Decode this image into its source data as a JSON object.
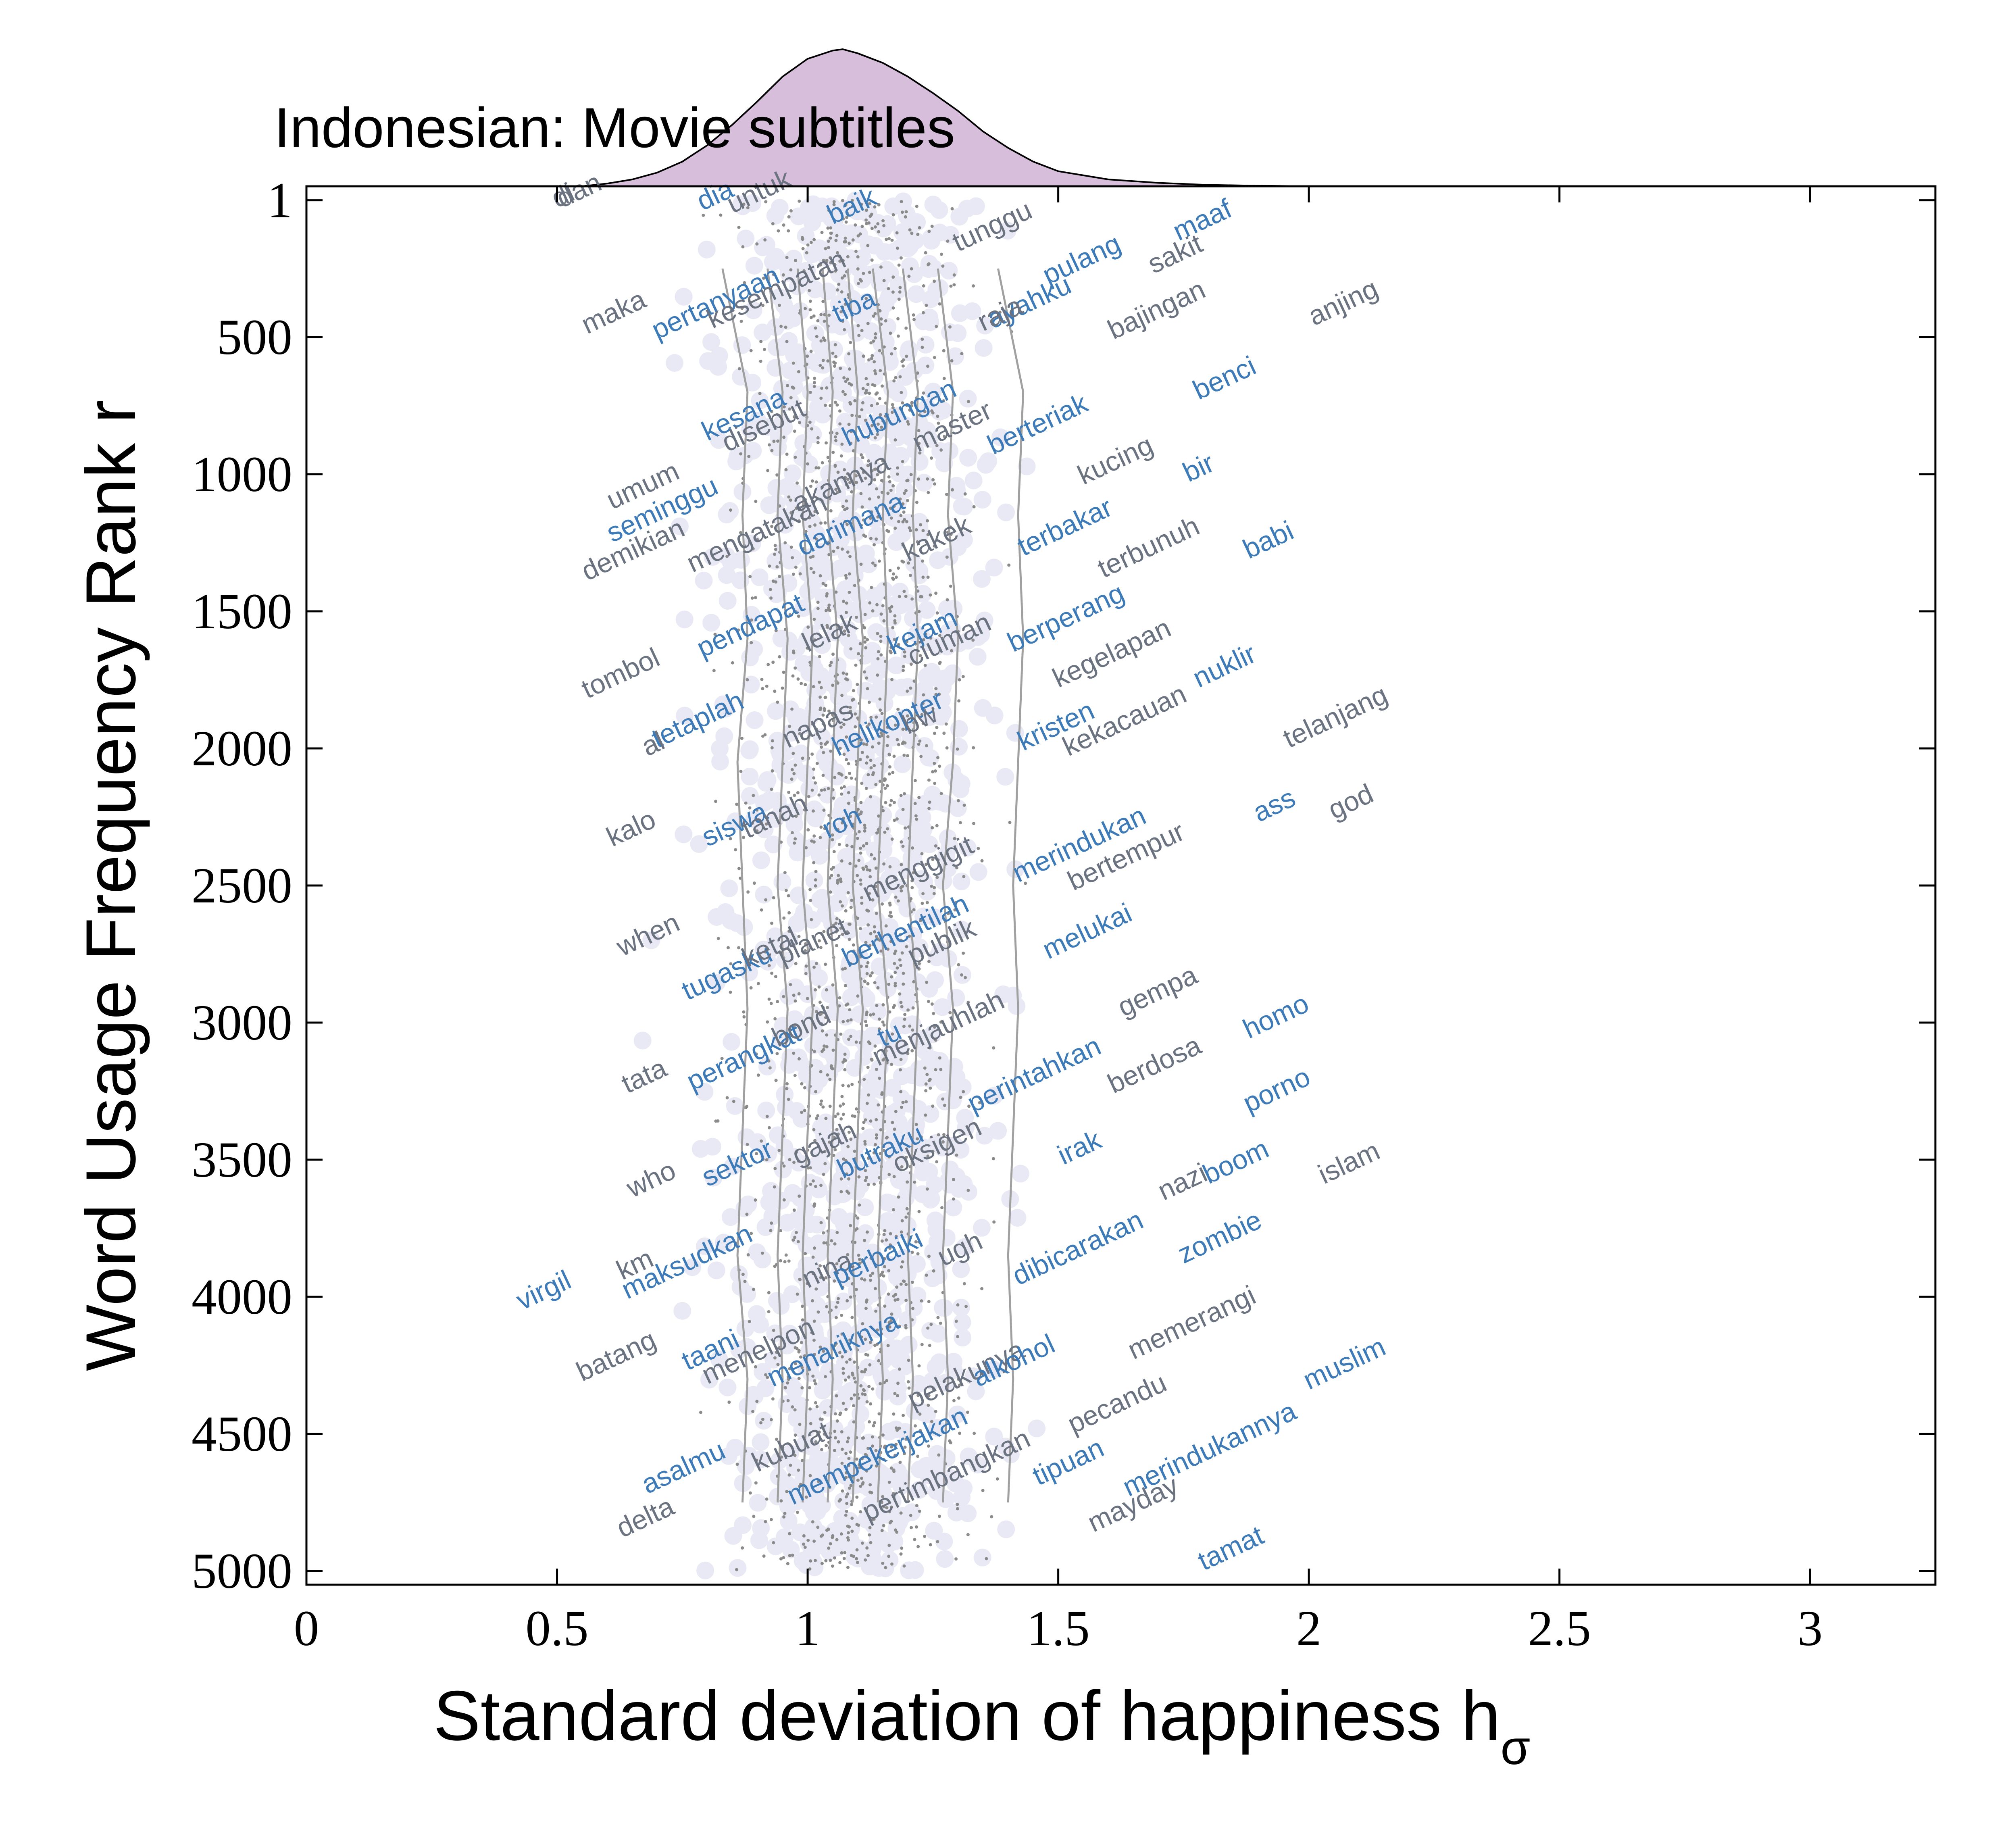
{
  "chart_data": {
    "type": "scatter",
    "title": "Indonesian: Movie subtitles",
    "xlabel": "Standard deviation of happiness h",
    "xlabel_subscript": "σ",
    "ylabel": "Word Usage Frequency Rank r",
    "xlim": [
      0,
      3.25
    ],
    "ylim": [
      5050,
      -50
    ],
    "y_inverted": true,
    "x_ticks": [
      0,
      0.5,
      1,
      1.5,
      2,
      2.5,
      3
    ],
    "x_tick_labels": [
      "0",
      "0.5",
      "1",
      "1.5",
      "2",
      "2.5",
      "3"
    ],
    "y_ticks": [
      1,
      500,
      1000,
      1500,
      2000,
      2500,
      3000,
      3500,
      4000,
      4500,
      5000
    ],
    "y_tick_labels": [
      "1",
      "500",
      "1000",
      "1500",
      "2000",
      "2500",
      "3000",
      "3500",
      "4000",
      "4500",
      "5000"
    ],
    "grid": false,
    "colors": {
      "word_positive": "#3d7ab8",
      "word_neutral": "#6b7280",
      "dot": "#8a8a8a",
      "halo": "#e9e9f5",
      "trend": "#a0a0a0",
      "density_fill": "#d7bedb",
      "density_stroke": "#000000"
    },
    "marginal_density": {
      "x": [
        0.55,
        0.6,
        0.65,
        0.7,
        0.75,
        0.8,
        0.85,
        0.9,
        0.95,
        1.0,
        1.05,
        1.07,
        1.1,
        1.15,
        1.2,
        1.25,
        1.3,
        1.35,
        1.4,
        1.45,
        1.5,
        1.6,
        1.7,
        1.8,
        1.9,
        2.0
      ],
      "y": [
        0.0,
        0.02,
        0.05,
        0.1,
        0.18,
        0.3,
        0.45,
        0.62,
        0.8,
        0.93,
        0.99,
        1.0,
        0.97,
        0.9,
        0.8,
        0.68,
        0.55,
        0.4,
        0.28,
        0.18,
        0.11,
        0.05,
        0.025,
        0.01,
        0.004,
        0.0
      ]
    },
    "trend_lines": [
      {
        "x": [
          0.83,
          0.88,
          0.87,
          0.88,
          0.86,
          0.87,
          0.88,
          0.87,
          0.86,
          0.88,
          0.87
        ]
      },
      {
        "x": [
          0.92,
          0.95,
          0.94,
          0.96,
          0.95,
          0.94,
          0.96,
          0.95,
          0.94,
          0.95,
          0.94
        ]
      },
      {
        "x": [
          0.98,
          1.0,
          0.99,
          1.01,
          1.0,
          0.99,
          1.01,
          1.0,
          0.99,
          1.0,
          0.99
        ]
      },
      {
        "x": [
          1.03,
          1.05,
          1.04,
          1.06,
          1.05,
          1.04,
          1.06,
          1.05,
          1.04,
          1.05,
          1.04
        ]
      },
      {
        "x": [
          1.08,
          1.1,
          1.09,
          1.11,
          1.1,
          1.09,
          1.11,
          1.1,
          1.09,
          1.1,
          1.09
        ]
      },
      {
        "x": [
          1.13,
          1.16,
          1.15,
          1.16,
          1.15,
          1.14,
          1.16,
          1.15,
          1.14,
          1.15,
          1.14
        ]
      },
      {
        "x": [
          1.19,
          1.22,
          1.21,
          1.22,
          1.21,
          1.2,
          1.22,
          1.21,
          1.2,
          1.21,
          1.2
        ]
      },
      {
        "x": [
          1.26,
          1.29,
          1.28,
          1.3,
          1.29,
          1.27,
          1.29,
          1.28,
          1.27,
          1.28,
          1.27
        ]
      },
      {
        "x": [
          1.38,
          1.43,
          1.42,
          1.43,
          1.42,
          1.41,
          1.42,
          1.41,
          1.4,
          1.41,
          1.4
        ]
      }
    ],
    "trend_ranks": [
      250,
      700,
      1150,
      1600,
      2050,
      2500,
      2950,
      3400,
      3850,
      4300,
      4750
    ],
    "words": [
      {
        "t": "dan",
        "x": 0.51,
        "r": 30,
        "c": "n"
      },
      {
        "t": "di",
        "x": 0.5,
        "r": 30,
        "c": "n"
      },
      {
        "t": "dia",
        "x": 0.79,
        "r": 40,
        "c": "p"
      },
      {
        "t": "untuk",
        "x": 0.85,
        "r": 50,
        "c": "n"
      },
      {
        "t": "baik",
        "x": 1.05,
        "r": 90,
        "c": "p"
      },
      {
        "t": "tunggu",
        "x": 1.3,
        "r": 190,
        "c": "n"
      },
      {
        "t": "maaf",
        "x": 1.74,
        "r": 150,
        "c": "p"
      },
      {
        "t": "sakit",
        "x": 1.69,
        "r": 270,
        "c": "n"
      },
      {
        "t": "pulang",
        "x": 1.48,
        "r": 310,
        "c": "p"
      },
      {
        "t": "ayahku",
        "x": 1.37,
        "r": 470,
        "c": "p"
      },
      {
        "t": "raja",
        "x": 1.35,
        "r": 480,
        "c": "n"
      },
      {
        "t": "bajingan",
        "x": 1.61,
        "r": 510,
        "c": "n"
      },
      {
        "t": "anjing",
        "x": 2.01,
        "r": 460,
        "c": "n"
      },
      {
        "t": "maka",
        "x": 0.56,
        "r": 490,
        "c": "n"
      },
      {
        "t": "pertanyaan",
        "x": 0.7,
        "r": 510,
        "c": "p"
      },
      {
        "t": "kesempatan",
        "x": 0.81,
        "r": 470,
        "c": "n"
      },
      {
        "t": "tiba",
        "x": 1.06,
        "r": 450,
        "c": "p"
      },
      {
        "t": "benci",
        "x": 1.78,
        "r": 730,
        "c": "p"
      },
      {
        "t": "kesana",
        "x": 0.8,
        "r": 880,
        "c": "p"
      },
      {
        "t": "disebut",
        "x": 0.84,
        "r": 920,
        "c": "n"
      },
      {
        "t": "hubungan",
        "x": 1.08,
        "r": 900,
        "c": "p"
      },
      {
        "t": "master",
        "x": 1.22,
        "r": 920,
        "c": "n"
      },
      {
        "t": "berteriak",
        "x": 1.37,
        "r": 930,
        "c": "p"
      },
      {
        "t": "kucing",
        "x": 1.55,
        "r": 1040,
        "c": "n"
      },
      {
        "t": "bir",
        "x": 1.76,
        "r": 1030,
        "c": "p"
      },
      {
        "t": "umum",
        "x": 0.61,
        "r": 1130,
        "c": "n"
      },
      {
        "t": "seminggu",
        "x": 0.61,
        "r": 1250,
        "c": "p"
      },
      {
        "t": "akannya",
        "x": 0.98,
        "r": 1140,
        "c": "n"
      },
      {
        "t": "darimana",
        "x": 0.99,
        "r": 1300,
        "c": "p"
      },
      {
        "t": "mengatakan",
        "x": 0.77,
        "r": 1360,
        "c": "n"
      },
      {
        "t": "demikian",
        "x": 0.56,
        "r": 1390,
        "c": "n"
      },
      {
        "t": "kakek",
        "x": 1.2,
        "r": 1320,
        "c": "n"
      },
      {
        "t": "terbakar",
        "x": 1.43,
        "r": 1300,
        "c": "p"
      },
      {
        "t": "terbunuh",
        "x": 1.59,
        "r": 1380,
        "c": "n"
      },
      {
        "t": "babi",
        "x": 1.88,
        "r": 1310,
        "c": "p"
      },
      {
        "t": "pendapat",
        "x": 0.79,
        "r": 1670,
        "c": "p"
      },
      {
        "t": "lelak",
        "x": 1.0,
        "r": 1650,
        "c": "n"
      },
      {
        "t": "kejam",
        "x": 1.17,
        "r": 1660,
        "c": "p"
      },
      {
        "t": "ciuman",
        "x": 1.21,
        "r": 1700,
        "c": "n"
      },
      {
        "t": "berperang",
        "x": 1.41,
        "r": 1650,
        "c": "p"
      },
      {
        "t": "kegelapan",
        "x": 1.5,
        "r": 1780,
        "c": "n"
      },
      {
        "t": "nuklir",
        "x": 1.78,
        "r": 1780,
        "c": "p"
      },
      {
        "t": "telanjang",
        "x": 1.96,
        "r": 2000,
        "c": "n"
      },
      {
        "t": "tombol",
        "x": 0.56,
        "r": 1820,
        "c": "n"
      },
      {
        "t": "tetaplah",
        "x": 0.7,
        "r": 2000,
        "c": "p"
      },
      {
        "t": "al",
        "x": 0.68,
        "r": 2030,
        "c": "n"
      },
      {
        "t": "napas",
        "x": 0.96,
        "r": 2000,
        "c": "n"
      },
      {
        "t": "helikopter",
        "x": 1.06,
        "r": 2030,
        "c": "p"
      },
      {
        "t": "bw",
        "x": 1.2,
        "r": 1950,
        "c": "n"
      },
      {
        "t": "kristen",
        "x": 1.43,
        "r": 2010,
        "c": "p"
      },
      {
        "t": "kekacauan",
        "x": 1.52,
        "r": 2030,
        "c": "n"
      },
      {
        "t": "kalo",
        "x": 0.61,
        "r": 2360,
        "c": "n"
      },
      {
        "t": "siswa",
        "x": 0.8,
        "r": 2360,
        "c": "p"
      },
      {
        "t": "tanah",
        "x": 0.88,
        "r": 2330,
        "c": "n"
      },
      {
        "t": "roh",
        "x": 1.04,
        "r": 2330,
        "c": "p"
      },
      {
        "t": "merindukan",
        "x": 1.42,
        "r": 2490,
        "c": "p"
      },
      {
        "t": "bertempur",
        "x": 1.53,
        "r": 2520,
        "c": "n"
      },
      {
        "t": "ass",
        "x": 1.9,
        "r": 2270,
        "c": "p"
      },
      {
        "t": "god",
        "x": 2.05,
        "r": 2260,
        "c": "n"
      },
      {
        "t": "menggigit",
        "x": 1.12,
        "r": 2560,
        "c": "n"
      },
      {
        "t": "when",
        "x": 0.63,
        "r": 2760,
        "c": "n"
      },
      {
        "t": "tugasku",
        "x": 0.76,
        "r": 2920,
        "c": "p"
      },
      {
        "t": "ketal",
        "x": 0.88,
        "r": 2800,
        "c": "n"
      },
      {
        "t": "planet",
        "x": 0.95,
        "r": 2790,
        "c": "n"
      },
      {
        "t": "berhentilah",
        "x": 1.08,
        "r": 2800,
        "c": "p"
      },
      {
        "t": "publik",
        "x": 1.21,
        "r": 2790,
        "c": "n"
      },
      {
        "t": "melukai",
        "x": 1.48,
        "r": 2770,
        "c": "p"
      },
      {
        "t": "gempa",
        "x": 1.63,
        "r": 2980,
        "c": "n"
      },
      {
        "t": "homo",
        "x": 1.88,
        "r": 3060,
        "c": "p"
      },
      {
        "t": "perangkat",
        "x": 0.77,
        "r": 3250,
        "c": "p"
      },
      {
        "t": "bond",
        "x": 0.94,
        "r": 3090,
        "c": "n"
      },
      {
        "t": "tu",
        "x": 1.15,
        "r": 3090,
        "c": "p"
      },
      {
        "t": "menjauhlah",
        "x": 1.14,
        "r": 3160,
        "c": "n"
      },
      {
        "t": "perintahkan",
        "x": 1.33,
        "r": 3330,
        "c": "p"
      },
      {
        "t": "berdosa",
        "x": 1.61,
        "r": 3260,
        "c": "n"
      },
      {
        "t": "porno",
        "x": 1.88,
        "r": 3330,
        "c": "p"
      },
      {
        "t": "tata",
        "x": 0.64,
        "r": 3260,
        "c": "n"
      },
      {
        "t": "who",
        "x": 0.65,
        "r": 3640,
        "c": "n"
      },
      {
        "t": "sektor",
        "x": 0.8,
        "r": 3600,
        "c": "p"
      },
      {
        "t": "gajah",
        "x": 0.98,
        "r": 3520,
        "c": "n"
      },
      {
        "t": "butraku",
        "x": 1.07,
        "r": 3570,
        "c": "p"
      },
      {
        "t": "oksigen",
        "x": 1.18,
        "r": 3550,
        "c": "n"
      },
      {
        "t": "irak",
        "x": 1.51,
        "r": 3520,
        "c": "p"
      },
      {
        "t": "boom",
        "x": 1.8,
        "r": 3590,
        "c": "p"
      },
      {
        "t": "nazi",
        "x": 1.71,
        "r": 3650,
        "c": "n"
      },
      {
        "t": "islam",
        "x": 2.03,
        "r": 3590,
        "c": "n"
      },
      {
        "t": "km",
        "x": 0.63,
        "r": 3940,
        "c": "n"
      },
      {
        "t": "maksudkan",
        "x": 0.64,
        "r": 4010,
        "c": "p"
      },
      {
        "t": "nina",
        "x": 1.0,
        "r": 3970,
        "c": "n"
      },
      {
        "t": "perbaiki",
        "x": 1.06,
        "r": 3960,
        "c": "p"
      },
      {
        "t": "ugh",
        "x": 1.27,
        "r": 3890,
        "c": "n"
      },
      {
        "t": "dibicarakan",
        "x": 1.42,
        "r": 3960,
        "c": "p"
      },
      {
        "t": "zombie",
        "x": 1.75,
        "r": 3880,
        "c": "p"
      },
      {
        "t": "memerangi",
        "x": 1.65,
        "r": 4230,
        "c": "n"
      },
      {
        "t": "virgil",
        "x": 0.43,
        "r": 4050,
        "c": "p"
      },
      {
        "t": "batang",
        "x": 0.55,
        "r": 4310,
        "c": "n"
      },
      {
        "t": "taani",
        "x": 0.76,
        "r": 4270,
        "c": "p"
      },
      {
        "t": "menelpon",
        "x": 0.8,
        "r": 4320,
        "c": "n"
      },
      {
        "t": "menariknya",
        "x": 0.93,
        "r": 4330,
        "c": "p"
      },
      {
        "t": "pelakunya",
        "x": 1.21,
        "r": 4410,
        "c": "n"
      },
      {
        "t": "alkohol",
        "x": 1.34,
        "r": 4330,
        "c": "p"
      },
      {
        "t": "pecandu",
        "x": 1.53,
        "r": 4500,
        "c": "n"
      },
      {
        "t": "muslim",
        "x": 2.0,
        "r": 4340,
        "c": "p"
      },
      {
        "t": "merindukannya",
        "x": 1.64,
        "r": 4730,
        "c": "p"
      },
      {
        "t": "asalmu",
        "x": 0.68,
        "r": 4720,
        "c": "p"
      },
      {
        "t": "kubuat",
        "x": 0.9,
        "r": 4640,
        "c": "n"
      },
      {
        "t": "mempekerjakan",
        "x": 0.97,
        "r": 4760,
        "c": "p"
      },
      {
        "t": "pertimbangkan",
        "x": 1.12,
        "r": 4820,
        "c": "n"
      },
      {
        "t": "tipuan",
        "x": 1.46,
        "r": 4690,
        "c": "p"
      },
      {
        "t": "mayday",
        "x": 1.57,
        "r": 4860,
        "c": "n"
      },
      {
        "t": "delta",
        "x": 0.63,
        "r": 4880,
        "c": "n"
      },
      {
        "t": "tamat",
        "x": 1.79,
        "r": 5000,
        "c": "p"
      }
    ]
  }
}
